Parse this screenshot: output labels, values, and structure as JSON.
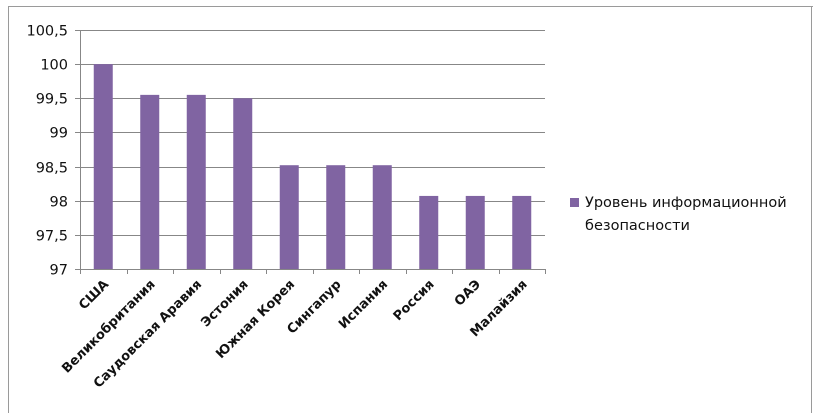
{
  "colors": {
    "bar": "#8064A2",
    "grid": "#878787",
    "frame": "#9a9a9a",
    "text": "#111111"
  },
  "chart_data": {
    "type": "bar",
    "categories": [
      "США",
      "Великобритания",
      "Саудовская Аравия",
      "Эстония",
      "Южная Корея",
      "Сингапур",
      "Испания",
      "Россия",
      "ОАЭ",
      "Малайзия"
    ],
    "series": [
      {
        "name": "Уровень информационной безопасности",
        "values": [
          100,
          99.55,
          99.55,
          99.5,
          98.52,
          98.52,
          98.52,
          98.07,
          98.07,
          98.07
        ]
      }
    ],
    "ylim": [
      97,
      100.5
    ],
    "yticks": [
      97,
      97.5,
      98,
      98.5,
      99,
      99.5,
      100,
      100.5
    ],
    "ytick_labels": [
      "97",
      "97,5",
      "98",
      "98,5",
      "99",
      "99,5",
      "100",
      "100,5"
    ],
    "grid": true,
    "legend_position": "right",
    "title": "",
    "xlabel": "",
    "ylabel": ""
  },
  "legend": {
    "label": "Уровень информационной безопасности"
  }
}
